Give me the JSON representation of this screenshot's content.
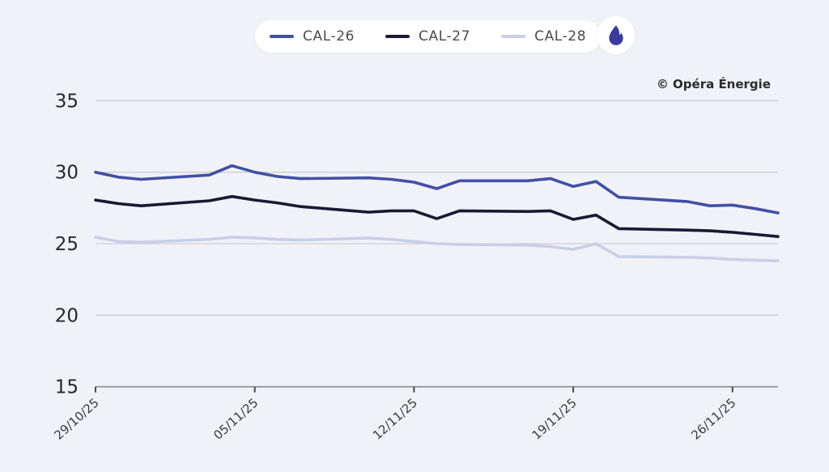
{
  "header": {
    "copyright": "© Opéra Énergie"
  },
  "legend": {
    "flame_icon": {
      "name": "gas-flame-icon",
      "color": "#3b3b9e",
      "background": "#ffffff"
    }
  },
  "chart_data": {
    "type": "line",
    "title": "",
    "xlabel": "",
    "ylabel": "",
    "x": [
      "29/10/25",
      "30/10/25",
      "31/10/25",
      "03/11/25",
      "04/11/25",
      "05/11/25",
      "06/11/25",
      "07/11/25",
      "10/11/25",
      "11/11/25",
      "12/11/25",
      "13/11/25",
      "14/11/25",
      "17/11/25",
      "18/11/25",
      "19/11/25",
      "20/11/25",
      "21/11/25",
      "24/11/25",
      "25/11/25",
      "26/11/25",
      "27/11/25",
      "28/11/25"
    ],
    "series": [
      {
        "name": "CAL-26",
        "color": "#4051a4",
        "values": [
          30.0,
          29.65,
          29.5,
          29.8,
          30.45,
          30.0,
          29.7,
          29.55,
          29.6,
          29.5,
          29.3,
          28.85,
          29.4,
          29.4,
          29.55,
          29.0,
          29.35,
          28.25,
          27.95,
          27.65,
          27.7,
          27.45,
          27.15
        ]
      },
      {
        "name": "CAL-27",
        "color": "#191936",
        "values": [
          28.05,
          27.8,
          27.65,
          28.0,
          28.3,
          28.05,
          27.85,
          27.6,
          27.2,
          27.3,
          27.3,
          26.75,
          27.3,
          27.25,
          27.3,
          26.7,
          27.0,
          26.05,
          25.95,
          25.9,
          25.8,
          25.65,
          25.5
        ]
      },
      {
        "name": "CAL-28",
        "color": "#cbceea",
        "values": [
          25.45,
          25.15,
          25.1,
          25.3,
          25.45,
          25.4,
          25.3,
          25.25,
          25.4,
          25.3,
          25.15,
          25.0,
          24.95,
          24.9,
          24.8,
          24.6,
          25.0,
          24.1,
          24.05,
          24.0,
          23.9,
          23.85,
          23.8
        ]
      }
    ],
    "ylim": [
      15,
      35
    ],
    "yticks": [
      15,
      20,
      25,
      30,
      35
    ],
    "xtick_labels": [
      "29/10/25",
      "05/11/25",
      "12/11/25",
      "19/11/25",
      "26/11/25"
    ],
    "grid": "horizontal",
    "legend_position": "top",
    "x_axis_type": "calendar-days"
  },
  "colors": {
    "background": "#f1f2f7",
    "gridline": "#c6c6cc",
    "axis_line": "#8b8b93",
    "tick": "#4a4a4a",
    "y_label": "#27272a",
    "x_label": "#3a3a3a"
  }
}
